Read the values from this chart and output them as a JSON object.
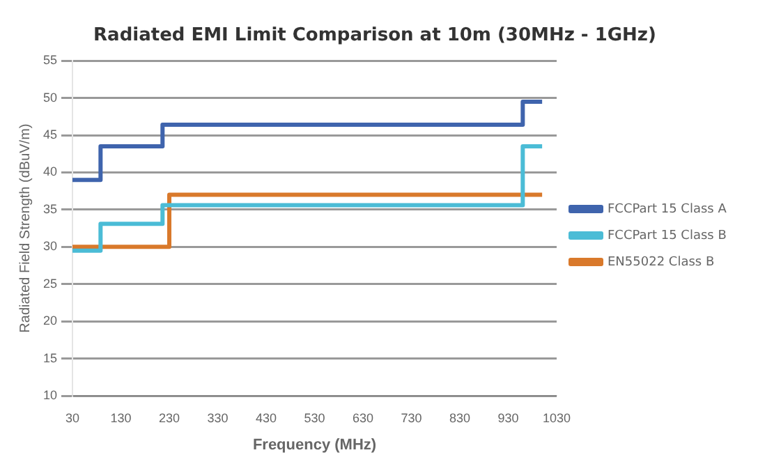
{
  "chart_data": {
    "type": "step",
    "title": "Radiated EMI Limit Comparison at 10m (30MHz - 1GHz)",
    "xlabel": "Frequency (MHz)",
    "ylabel": "Radiated Field Strength (dBuV/m)",
    "series": [
      {
        "name": "FCCPart 15 Class A",
        "color": "#3f64ad",
        "x": [
          30,
          88,
          216,
          960,
          1000
        ],
        "values": [
          39,
          43.5,
          46.4,
          49.5,
          49.5
        ]
      },
      {
        "name": "FCCPart 15 Class B",
        "color": "#4bbcd6",
        "x": [
          30,
          88,
          216,
          960,
          1000
        ],
        "values": [
          29.5,
          33.1,
          35.6,
          43.5,
          43.5
        ]
      },
      {
        "name": "EN55022 Class B",
        "color": "#d9792b",
        "x": [
          30,
          230,
          1000
        ],
        "values": [
          30,
          37,
          37
        ]
      }
    ],
    "xlim": [
      30,
      1030
    ],
    "xticks": [
      30,
      130,
      230,
      330,
      430,
      530,
      630,
      730,
      830,
      930,
      1030
    ],
    "ylim": [
      10,
      55
    ],
    "yticks": [
      10,
      15,
      20,
      25,
      30,
      35,
      40,
      45,
      50,
      55
    ],
    "grid": "y",
    "legend": "right"
  }
}
